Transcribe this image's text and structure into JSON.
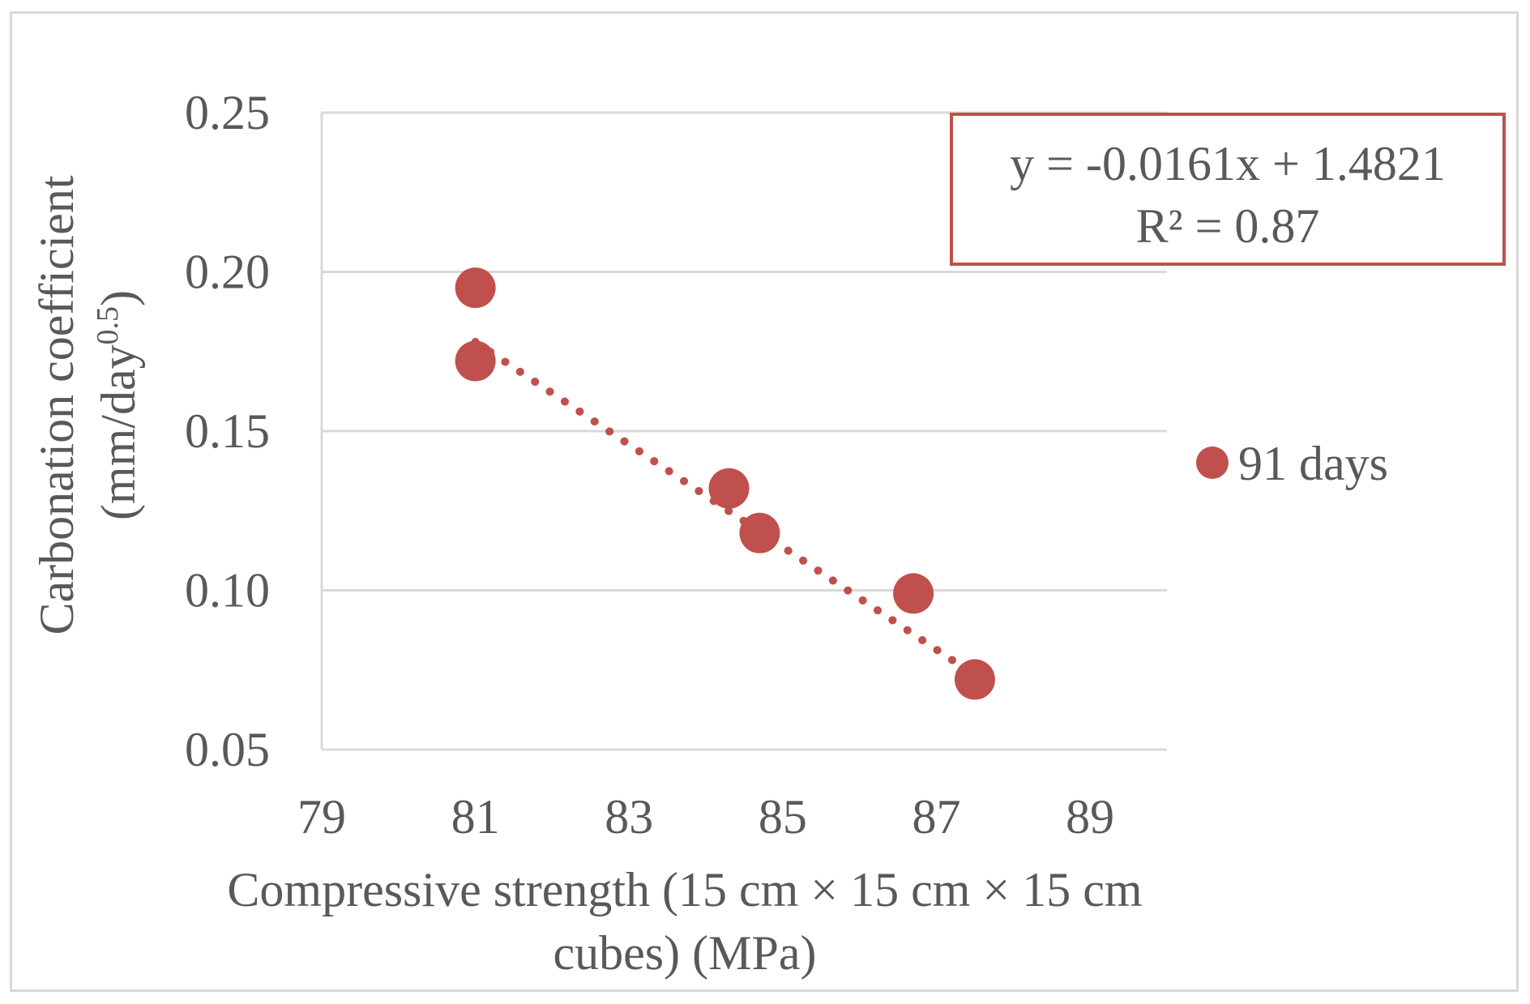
{
  "chart_data": {
    "type": "scatter",
    "xlabel_line1": "Compressive strength (15 cm × 15 cm × 15 cm",
    "xlabel_line2": "cubes) (MPa)",
    "ylabel_line1": "Carbonation coefficient",
    "ylabel_line2_base": "(mm/day",
    "ylabel_line2_sup": "0.5",
    "ylabel_line2_end": ")",
    "xlim": [
      79,
      90
    ],
    "ylim": [
      0.05,
      0.25
    ],
    "x_ticks": [
      79,
      81,
      83,
      85,
      87,
      89
    ],
    "x_tick_labels": [
      "79",
      "81",
      "83",
      "85",
      "87",
      "89"
    ],
    "y_ticks": [
      0.05,
      0.1,
      0.15,
      0.2,
      0.25
    ],
    "y_tick_labels": [
      "0.05",
      "0.10",
      "0.15",
      "0.20",
      "0.25"
    ],
    "grid": true,
    "series": [
      {
        "name": "91 days",
        "color": "#c0504d",
        "x": [
          81.0,
          81.0,
          84.3,
          84.7,
          86.7,
          87.5
        ],
        "y": [
          0.195,
          0.172,
          0.132,
          0.118,
          0.099,
          0.072
        ]
      }
    ],
    "trendline": {
      "slope": -0.0161,
      "intercept": 1.4821,
      "x_range": [
        81.0,
        87.5
      ],
      "style": "dotted",
      "color": "#c0504d",
      "equation": "y = -0.0161x + 1.4821",
      "r2": "R² = 0.87"
    },
    "legend": {
      "label": "91 days",
      "position": "right"
    }
  }
}
